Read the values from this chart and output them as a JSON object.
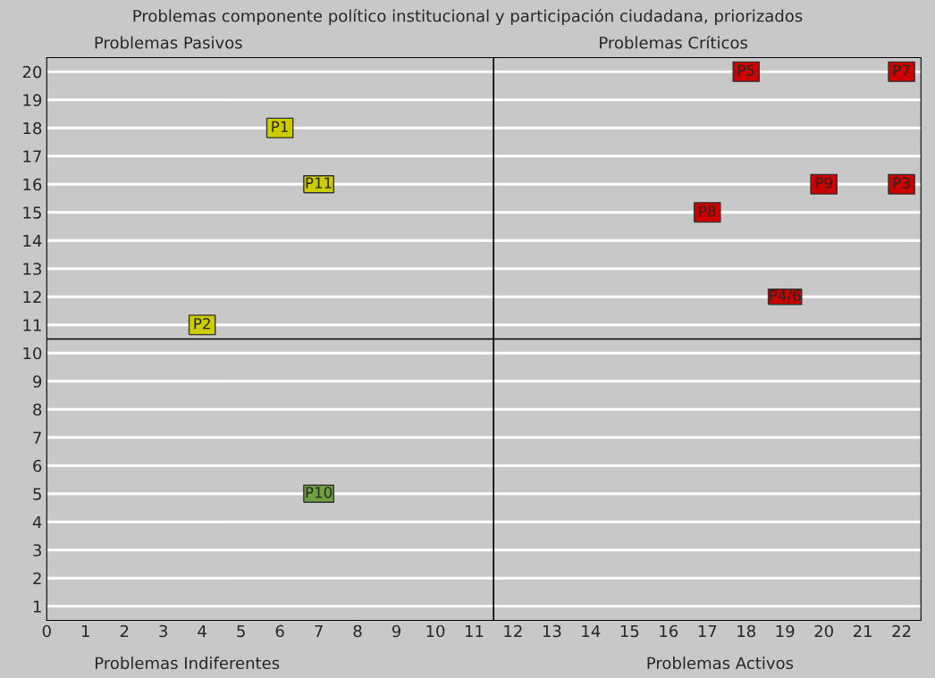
{
  "chart_data": {
    "type": "scatter",
    "title": "Problemas componente político institucional y participación ciudadana, priorizados",
    "annotations": [
      "Problemas Pasivos",
      "Problemas Críticos",
      "Problemas Indiferentes",
      "Problemas Activos"
    ],
    "xlim": [
      0,
      22.5
    ],
    "xticks": [
      0,
      1,
      2,
      3,
      4,
      5,
      6,
      7,
      8,
      9,
      10,
      11,
      12,
      13,
      14,
      15,
      16,
      17,
      18,
      19,
      20,
      21,
      22
    ],
    "ylim": [
      0.5,
      20.5
    ],
    "yticks": [
      1,
      2,
      3,
      4,
      5,
      6,
      7,
      8,
      9,
      10,
      11,
      12,
      13,
      14,
      15,
      16,
      17,
      18,
      19,
      20
    ],
    "grid": "y",
    "marker": "square",
    "legend": false,
    "ref_lines": [
      {
        "axis": "x",
        "value": 11.5,
        "color": "#000000"
      },
      {
        "axis": "y",
        "value": 10.5,
        "color": "#000000"
      }
    ],
    "series": [
      {
        "color": "#cccc00",
        "x": [
          6,
          7,
          4
        ],
        "values": [
          18,
          16,
          11
        ],
        "value_labels": [
          "P1",
          "P11",
          "P2"
        ]
      },
      {
        "color": "#70a040",
        "x": [
          7
        ],
        "values": [
          5
        ],
        "value_labels": [
          "P10"
        ]
      },
      {
        "color": "#cc0000",
        "x": [
          18,
          22,
          20,
          22,
          17,
          19
        ],
        "values": [
          20,
          20,
          16,
          16,
          15,
          12
        ],
        "value_labels": [
          "P5",
          "P7",
          "P9",
          "P3",
          "P8",
          "P4/6"
        ]
      }
    ]
  }
}
